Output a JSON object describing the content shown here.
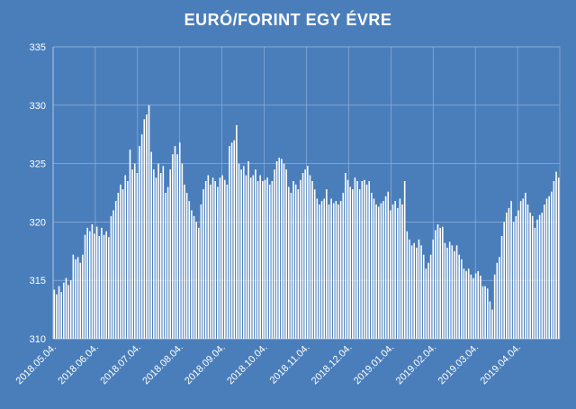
{
  "chart_data": {
    "type": "area",
    "title": "EURÓ/FORINT  EGY ÉVRE",
    "xlabel": "",
    "ylabel": "",
    "ylim": [
      310,
      335
    ],
    "yticks": [
      310,
      315,
      320,
      325,
      330,
      335
    ],
    "grid": true,
    "colors": {
      "background": "#4a7ebb",
      "fill": "#ffffff",
      "grid": "#9db8dc"
    },
    "xticks": [
      "2018.05.04.",
      "2018.06.04.",
      "2018.07.04.",
      "2018.08.04.",
      "2018.09.04.",
      "2018.10.04.",
      "2018.11.04.",
      "2018.12.04.",
      "2019.01.04.",
      "2019.02.04.",
      "2019.03.04.",
      "2019.04.04."
    ],
    "series": [
      {
        "values": [
          314.2,
          313.8,
          314.5,
          314.0,
          314.8,
          315.2,
          314.6,
          315.0,
          317.2,
          316.8,
          317.0,
          316.5,
          317.2,
          318.9,
          319.5,
          319.2,
          319.8,
          319.0,
          319.6,
          318.8,
          319.5,
          318.9,
          319.2,
          318.7,
          320.5,
          321.0,
          321.8,
          322.5,
          323.2,
          322.8,
          324.0,
          323.5,
          326.2,
          324.5,
          325.0,
          324.2,
          326.5,
          327.5,
          328.8,
          329.2,
          330.0,
          326.0,
          324.5,
          323.8,
          325.0,
          324.2,
          324.8,
          322.5,
          323.0,
          324.5,
          325.8,
          326.5,
          325.8,
          326.8,
          325.0,
          323.2,
          322.5,
          321.8,
          321.0,
          320.5,
          320.0,
          319.5,
          321.5,
          322.8,
          323.5,
          324.0,
          323.2,
          323.8,
          323.5,
          323.0,
          323.8,
          324.0,
          323.6,
          323.2,
          326.5,
          326.8,
          327.0,
          328.3,
          325.0,
          324.5,
          324.8,
          324.0,
          325.2,
          323.8,
          324.0,
          324.5,
          323.5,
          324.0,
          323.5,
          323.6,
          323.8,
          323.2,
          323.5,
          324.5,
          325.2,
          325.5,
          325.4,
          325.0,
          324.5,
          323.0,
          322.5,
          323.5,
          323.2,
          322.8,
          323.6,
          324.2,
          324.5,
          324.8,
          324.0,
          323.5,
          322.8,
          322.0,
          321.5,
          321.8,
          322.0,
          322.8,
          321.5,
          322.0,
          321.6,
          321.8,
          321.5,
          321.8,
          322.5,
          324.2,
          323.6,
          323.0,
          322.8,
          323.8,
          323.5,
          322.8,
          323.5,
          323.6,
          323.2,
          323.5,
          322.5,
          322.0,
          321.5,
          321.3,
          321.6,
          321.8,
          322.2,
          322.6,
          321.0,
          321.5,
          321.8,
          321.2,
          322.0,
          321.5,
          323.5,
          319.2,
          318.5,
          318.0,
          318.2,
          317.8,
          318.5,
          318.0,
          317.2,
          316.0,
          316.5,
          317.2,
          318.5,
          319.3,
          319.8,
          319.5,
          319.6,
          318.2,
          317.8,
          318.3,
          318.0,
          317.5,
          318.0,
          317.2,
          316.8,
          316.0,
          315.8,
          316.0,
          315.5,
          315.2,
          315.6,
          315.8,
          315.4,
          314.5,
          314.5,
          314.3,
          313.2,
          312.5,
          315.5,
          316.5,
          317.0,
          318.8,
          320.0,
          320.8,
          321.2,
          321.8,
          320.0,
          320.5,
          321.0,
          321.8,
          322.0,
          322.5,
          321.5,
          320.8,
          320.5,
          319.5,
          320.2,
          320.6,
          320.8,
          321.5,
          322.0,
          322.2,
          322.6,
          323.5,
          324.3,
          323.8
        ]
      }
    ]
  }
}
